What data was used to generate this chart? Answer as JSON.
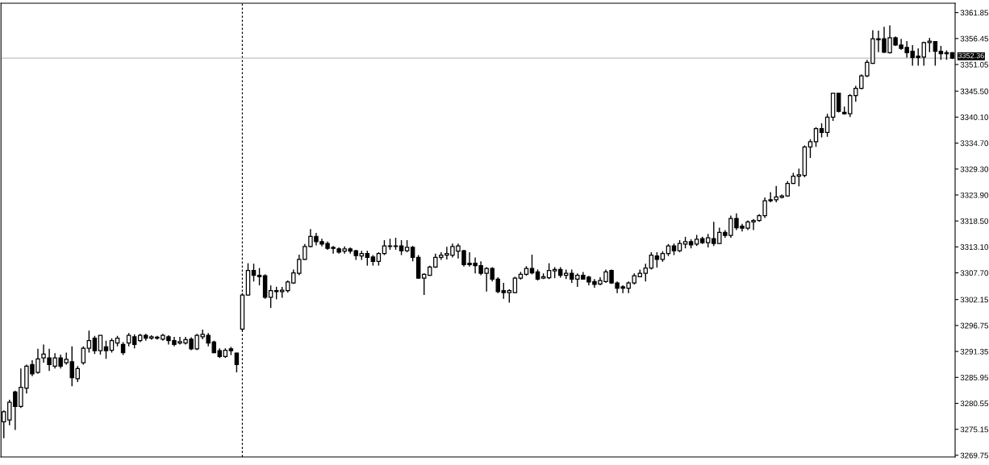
{
  "chart_data": {
    "type": "candlestick",
    "categories": [
      null,
      null,
      null,
      null,
      null,
      null,
      null,
      null,
      null,
      null,
      null,
      null,
      null,
      null,
      null,
      null,
      null,
      null,
      null,
      null,
      null,
      null,
      null,
      null,
      null,
      null,
      null,
      null,
      null,
      null,
      null,
      null,
      null,
      null,
      null,
      null,
      null,
      null,
      null,
      null,
      null,
      null,
      null,
      null,
      null,
      null,
      null,
      null,
      null,
      null,
      null,
      null,
      null,
      null,
      null,
      null,
      null,
      null,
      null,
      null,
      null,
      null,
      null,
      null,
      null,
      null,
      null,
      null,
      null,
      null,
      null,
      null,
      null,
      null,
      null,
      null,
      null,
      null,
      null,
      null,
      null,
      null,
      null,
      null,
      null,
      null,
      null,
      null,
      null,
      null,
      null,
      null,
      null,
      null,
      null,
      null,
      null,
      null,
      null,
      null,
      null,
      null,
      null,
      null,
      null,
      null,
      null,
      null,
      null,
      null,
      null,
      null,
      null,
      null,
      null,
      null,
      null,
      null,
      null,
      null,
      null,
      null,
      null,
      null,
      null,
      null,
      null,
      null,
      null,
      null,
      null,
      null,
      null,
      null,
      null,
      null,
      null,
      null,
      null,
      null,
      null,
      null,
      null,
      null,
      null,
      null,
      null,
      null,
      null,
      null,
      null,
      null,
      null,
      null,
      null,
      null,
      null,
      null,
      null,
      null,
      null,
      null,
      null,
      null,
      null,
      null,
      null,
      null
    ],
    "ohlc": [
      [
        3276.7,
        3279.1,
        3273.3,
        3278.8
      ],
      [
        3277.1,
        3281.3,
        3276.0,
        3280.8
      ],
      [
        3282.9,
        3283.2,
        3275.0,
        3279.9
      ],
      [
        3279.9,
        3287.8,
        3279.6,
        3283.9
      ],
      [
        3283.7,
        3288.6,
        3282.6,
        3288.3
      ],
      [
        3288.6,
        3289.5,
        3286.2,
        3286.7
      ],
      [
        3287.0,
        3291.9,
        3286.7,
        3289.8
      ],
      [
        3290.0,
        3292.8,
        3289.0,
        3290.8
      ],
      [
        3290.0,
        3291.9,
        3287.3,
        3288.6
      ],
      [
        3288.3,
        3291.0,
        3287.8,
        3290.0
      ],
      [
        3290.0,
        3290.7,
        3287.8,
        3288.3
      ],
      [
        3289.0,
        3291.1,
        3288.6,
        3289.7
      ],
      [
        3289.2,
        3292.4,
        3284.1,
        3285.9
      ],
      [
        3285.7,
        3288.3,
        3285.0,
        3287.8
      ],
      [
        3289.0,
        3292.4,
        3288.6,
        3292.0
      ],
      [
        3292.0,
        3295.7,
        3291.1,
        3293.6
      ],
      [
        3294.1,
        3294.6,
        3290.8,
        3291.5
      ],
      [
        3291.5,
        3294.7,
        3290.7,
        3294.7
      ],
      [
        3292.3,
        3293.6,
        3289.8,
        3291.5
      ],
      [
        3291.6,
        3294.1,
        3291.1,
        3293.6
      ],
      [
        3293.1,
        3294.6,
        3292.4,
        3294.1
      ],
      [
        3292.8,
        3293.3,
        3290.6,
        3291.1
      ],
      [
        3293.1,
        3295.2,
        3292.4,
        3294.7
      ],
      [
        3294.4,
        3294.9,
        3292.0,
        3292.8
      ],
      [
        3293.6,
        3295.0,
        3293.3,
        3294.7
      ],
      [
        3294.7,
        3295.0,
        3293.6,
        3294.1
      ],
      [
        3294.1,
        3294.7,
        3293.8,
        3294.4
      ],
      [
        3294.3,
        3294.6,
        3293.8,
        3294.1
      ],
      [
        3293.9,
        3295.0,
        3293.6,
        3294.7
      ],
      [
        3294.4,
        3294.7,
        3292.8,
        3293.6
      ],
      [
        3293.6,
        3294.4,
        3292.4,
        3292.8
      ],
      [
        3293.1,
        3294.4,
        3292.8,
        3293.4
      ],
      [
        3293.1,
        3294.4,
        3292.8,
        3293.8
      ],
      [
        3293.9,
        3294.3,
        3291.6,
        3291.9
      ],
      [
        3291.9,
        3295.0,
        3291.6,
        3294.7
      ],
      [
        3294.4,
        3295.9,
        3293.9,
        3294.9
      ],
      [
        3294.7,
        3295.2,
        3292.4,
        3293.1
      ],
      [
        3293.3,
        3293.6,
        3291.0,
        3291.1
      ],
      [
        3291.5,
        3292.0,
        3290.0,
        3290.3
      ],
      [
        3290.3,
        3292.0,
        3290.0,
        3291.6
      ],
      [
        3291.9,
        3292.3,
        3290.6,
        3291.5
      ],
      [
        3291.0,
        3291.1,
        3287.0,
        3288.6
      ],
      [
        3296.0,
        3303.5,
        3295.6,
        3303.1
      ],
      [
        3303.1,
        3309.7,
        3303.0,
        3308.2
      ],
      [
        3308.2,
        3309.6,
        3305.9,
        3307.2
      ],
      [
        3307.2,
        3308.7,
        3305.1,
        3306.9
      ],
      [
        3307.1,
        3307.4,
        3302.3,
        3302.6
      ],
      [
        3302.6,
        3305.1,
        3300.4,
        3304.0
      ],
      [
        3303.8,
        3304.8,
        3302.2,
        3304.0
      ],
      [
        3303.8,
        3304.8,
        3302.5,
        3304.1
      ],
      [
        3304.0,
        3306.1,
        3303.6,
        3305.8
      ],
      [
        3305.6,
        3308.4,
        3305.4,
        3307.7
      ],
      [
        3307.6,
        3311.5,
        3307.2,
        3310.5
      ],
      [
        3310.5,
        3313.7,
        3310.4,
        3313.2
      ],
      [
        3313.2,
        3316.8,
        3313.0,
        3315.3
      ],
      [
        3315.3,
        3316.0,
        3313.4,
        3314.2
      ],
      [
        3314.2,
        3314.8,
        3313.2,
        3313.7
      ],
      [
        3313.8,
        3314.2,
        3312.5,
        3312.8
      ],
      [
        3313.0,
        3313.3,
        3311.7,
        3312.8
      ],
      [
        3312.7,
        3313.0,
        3311.7,
        3312.0
      ],
      [
        3312.2,
        3313.2,
        3311.7,
        3312.7
      ],
      [
        3312.7,
        3313.0,
        3311.7,
        3312.2
      ],
      [
        3312.3,
        3312.5,
        3310.4,
        3311.3
      ],
      [
        3311.2,
        3312.3,
        3310.4,
        3311.7
      ],
      [
        3311.7,
        3312.3,
        3309.2,
        3310.9
      ],
      [
        3311.0,
        3311.4,
        3309.2,
        3310.1
      ],
      [
        3310.1,
        3312.0,
        3309.2,
        3311.7
      ],
      [
        3311.7,
        3314.5,
        3311.4,
        3313.3
      ],
      [
        3313.2,
        3314.8,
        3312.5,
        3313.3
      ],
      [
        3313.3,
        3315.0,
        3312.5,
        3313.2
      ],
      [
        3313.3,
        3314.5,
        3311.4,
        3312.3
      ],
      [
        3312.3,
        3314.5,
        3312.0,
        3313.0
      ],
      [
        3313.0,
        3313.3,
        3310.1,
        3310.9
      ],
      [
        3310.9,
        3311.4,
        3306.5,
        3306.6
      ],
      [
        3306.6,
        3307.6,
        3303.1,
        3307.4
      ],
      [
        3307.2,
        3309.2,
        3307.1,
        3308.9
      ],
      [
        3308.9,
        3311.7,
        3308.7,
        3310.9
      ],
      [
        3310.9,
        3312.0,
        3310.4,
        3311.4
      ],
      [
        3311.4,
        3313.1,
        3310.5,
        3311.7
      ],
      [
        3311.4,
        3313.8,
        3310.9,
        3313.2
      ],
      [
        3312.2,
        3313.8,
        3310.7,
        3313.3
      ],
      [
        3312.3,
        3312.5,
        3309.0,
        3309.4
      ],
      [
        3309.7,
        3312.0,
        3309.0,
        3309.4
      ],
      [
        3309.7,
        3310.9,
        3307.6,
        3309.2
      ],
      [
        3309.2,
        3310.1,
        3307.2,
        3307.6
      ],
      [
        3307.6,
        3308.9,
        3303.8,
        3308.6
      ],
      [
        3308.6,
        3308.9,
        3305.9,
        3306.4
      ],
      [
        3306.4,
        3306.8,
        3303.5,
        3303.8
      ],
      [
        3304.0,
        3305.6,
        3302.3,
        3303.6
      ],
      [
        3303.6,
        3304.3,
        3301.5,
        3304.0
      ],
      [
        3303.6,
        3306.9,
        3303.5,
        3306.6
      ],
      [
        3306.6,
        3307.9,
        3306.3,
        3307.4
      ],
      [
        3307.4,
        3309.1,
        3307.1,
        3308.6
      ],
      [
        3308.6,
        3311.5,
        3307.4,
        3307.7
      ],
      [
        3307.9,
        3308.4,
        3306.1,
        3306.4
      ],
      [
        3306.6,
        3307.6,
        3306.4,
        3306.9
      ],
      [
        3306.7,
        3309.7,
        3306.4,
        3308.2
      ],
      [
        3308.1,
        3308.9,
        3306.6,
        3308.4
      ],
      [
        3308.4,
        3308.9,
        3306.7,
        3307.2
      ],
      [
        3307.2,
        3308.4,
        3306.4,
        3307.6
      ],
      [
        3307.6,
        3308.4,
        3305.6,
        3306.4
      ],
      [
        3306.4,
        3307.6,
        3304.8,
        3307.2
      ],
      [
        3307.2,
        3307.9,
        3306.3,
        3306.4
      ],
      [
        3306.8,
        3307.1,
        3305.1,
        3305.8
      ],
      [
        3305.9,
        3306.4,
        3304.6,
        3305.3
      ],
      [
        3305.4,
        3306.8,
        3305.1,
        3306.1
      ],
      [
        3305.9,
        3308.4,
        3305.6,
        3307.9
      ],
      [
        3308.2,
        3308.4,
        3305.4,
        3305.6
      ],
      [
        3305.6,
        3305.9,
        3303.5,
        3304.5
      ],
      [
        3304.8,
        3305.1,
        3303.5,
        3304.5
      ],
      [
        3304.5,
        3305.9,
        3303.5,
        3305.6
      ],
      [
        3305.6,
        3307.6,
        3305.3,
        3307.1
      ],
      [
        3306.9,
        3308.4,
        3306.8,
        3307.6
      ],
      [
        3307.6,
        3309.6,
        3305.9,
        3308.7
      ],
      [
        3308.7,
        3312.0,
        3308.4,
        3311.4
      ],
      [
        3311.2,
        3312.0,
        3308.8,
        3310.5
      ],
      [
        3310.5,
        3312.2,
        3310.0,
        3311.7
      ],
      [
        3311.7,
        3313.7,
        3311.2,
        3313.3
      ],
      [
        3313.3,
        3313.8,
        3311.4,
        3312.3
      ],
      [
        3312.3,
        3314.5,
        3312.0,
        3313.8
      ],
      [
        3313.7,
        3315.2,
        3312.8,
        3314.2
      ],
      [
        3314.2,
        3314.7,
        3312.8,
        3313.5
      ],
      [
        3313.7,
        3315.6,
        3313.3,
        3314.7
      ],
      [
        3314.8,
        3315.2,
        3313.7,
        3314.0
      ],
      [
        3314.0,
        3315.8,
        3313.0,
        3315.0
      ],
      [
        3314.8,
        3318.3,
        3313.3,
        3313.8
      ],
      [
        3313.8,
        3317.1,
        3313.7,
        3316.1
      ],
      [
        3316.1,
        3316.6,
        3315.0,
        3315.5
      ],
      [
        3315.5,
        3319.6,
        3315.0,
        3319.0
      ],
      [
        3319.0,
        3320.1,
        3316.6,
        3317.1
      ],
      [
        3317.4,
        3317.9,
        3316.3,
        3317.0
      ],
      [
        3317.0,
        3318.6,
        3316.6,
        3318.3
      ],
      [
        3318.3,
        3318.9,
        3316.6,
        3318.6
      ],
      [
        3318.6,
        3319.9,
        3318.3,
        3319.6
      ],
      [
        3319.6,
        3323.4,
        3319.1,
        3322.7
      ],
      [
        3322.7,
        3324.5,
        3322.4,
        3322.9
      ],
      [
        3322.9,
        3325.8,
        3322.4,
        3323.5
      ],
      [
        3323.4,
        3324.0,
        3323.2,
        3323.7
      ],
      [
        3323.7,
        3326.8,
        3323.5,
        3326.3
      ],
      [
        3326.3,
        3328.5,
        3326.2,
        3327.8
      ],
      [
        3327.8,
        3329.4,
        3325.7,
        3328.1
      ],
      [
        3328.0,
        3334.2,
        3327.6,
        3333.9
      ],
      [
        3333.9,
        3335.5,
        3331.6,
        3335.0
      ],
      [
        3335.0,
        3338.0,
        3333.9,
        3337.7
      ],
      [
        3337.7,
        3338.8,
        3335.9,
        3336.9
      ],
      [
        3336.9,
        3340.8,
        3336.0,
        3340.1
      ],
      [
        3340.1,
        3345.2,
        3339.3,
        3345.1
      ],
      [
        3345.1,
        3345.2,
        3341.1,
        3341.3
      ],
      [
        3341.1,
        3342.3,
        3340.6,
        3340.8
      ],
      [
        3340.8,
        3344.9,
        3340.1,
        3344.6
      ],
      [
        3344.6,
        3346.6,
        3343.3,
        3346.1
      ],
      [
        3346.1,
        3349.0,
        3345.9,
        3348.7
      ],
      [
        3348.7,
        3352.0,
        3348.4,
        3351.5
      ],
      [
        3351.3,
        3358.2,
        3351.2,
        3356.4
      ],
      [
        3356.4,
        3358.1,
        3353.6,
        3356.2
      ],
      [
        3356.4,
        3358.9,
        3353.5,
        3353.6
      ],
      [
        3353.5,
        3359.2,
        3353.3,
        3356.6
      ],
      [
        3356.6,
        3356.9,
        3354.9,
        3355.1
      ],
      [
        3355.1,
        3356.4,
        3354.1,
        3354.4
      ],
      [
        3354.6,
        3355.9,
        3352.5,
        3353.5
      ],
      [
        3353.8,
        3355.1,
        3350.8,
        3352.5
      ],
      [
        3352.8,
        3354.4,
        3350.8,
        3352.5
      ],
      [
        3352.6,
        3355.8,
        3350.8,
        3355.6
      ],
      [
        3355.6,
        3356.6,
        3353.6,
        3355.9
      ],
      [
        3355.8,
        3355.9,
        3350.8,
        3353.8
      ],
      [
        3353.8,
        3354.9,
        3352.0,
        3353.3
      ],
      [
        3353.5,
        3354.0,
        3352.0,
        3353.3
      ],
      [
        3353.5,
        3353.6,
        3352.2,
        3352.36
      ]
    ],
    "color": "#000000",
    "ylim": [
      3269.4,
      3363.8
    ],
    "yticks": [
      3361.85,
      3356.45,
      3351.05,
      {
        "value": 3345.5,
        "label": "3345.50"
      },
      {
        "value": 3340.1,
        "label": "3340.10"
      },
      {
        "value": 3334.7,
        "label": "3334.70"
      },
      {
        "value": 3329.3,
        "label": "3329.30"
      },
      {
        "value": 3323.9,
        "label": "3323.90"
      },
      {
        "value": 3318.5,
        "label": "3318.50"
      },
      {
        "value": 3313.1,
        "label": "3313.10"
      },
      {
        "value": 3307.7,
        "label": "3307.70"
      },
      3302.15,
      3296.75,
      3291.35,
      3285.95,
      3280.55,
      3275.15,
      3269.75
    ],
    "tick_labels": "y",
    "ref_lines": [
      {
        "axis": "y",
        "value": 3352.36,
        "label": "3352.36",
        "color": "#c0c0c0"
      }
    ],
    "grid": false,
    "legend": false
  }
}
